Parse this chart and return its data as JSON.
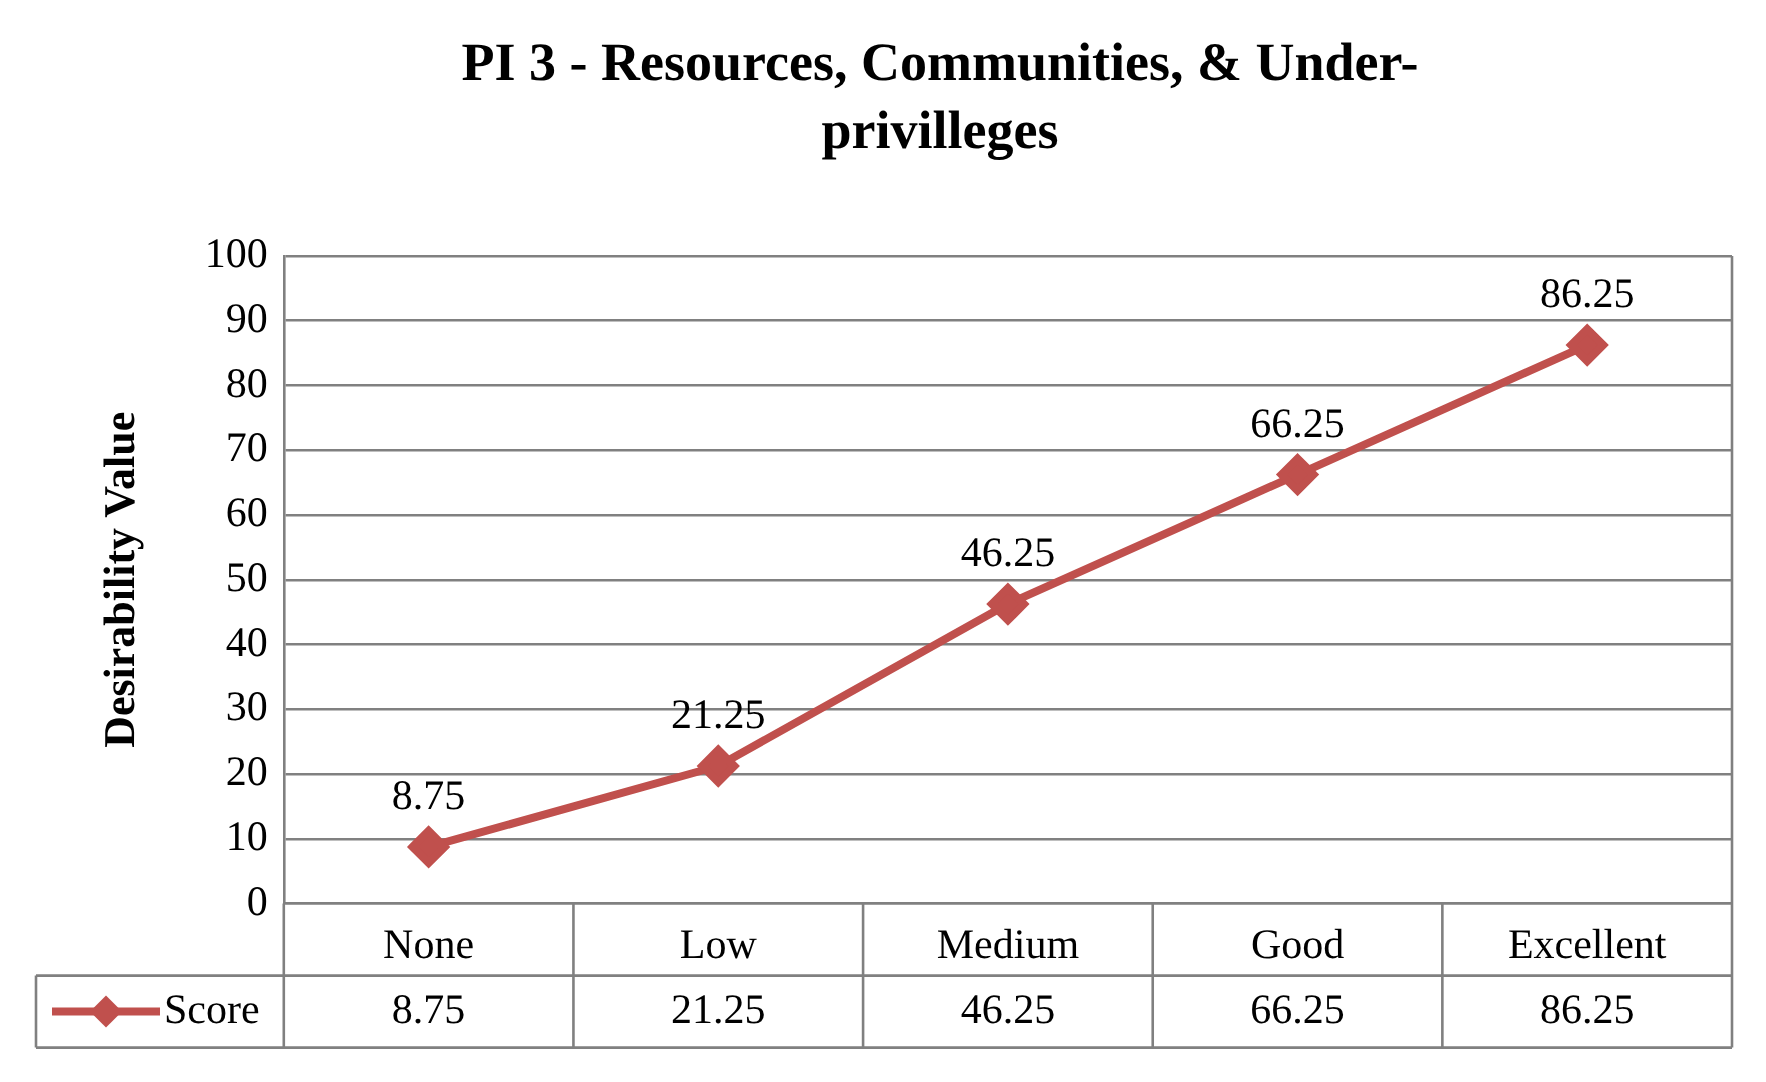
{
  "chart_data": {
    "type": "line",
    "title": "PI 3 - Resources, Communities, & Under-privilleges",
    "ylabel": "Desirability Value",
    "categories": [
      "None",
      "Low",
      "Medium",
      "Good",
      "Excellent"
    ],
    "series": [
      {
        "name": "Score",
        "color": "#c0504d",
        "values": [
          8.75,
          21.25,
          46.25,
          66.25,
          86.25
        ]
      }
    ],
    "annotations": [
      "8.75",
      "21.25",
      "46.25",
      "66.25",
      "86.25"
    ],
    "ylim": [
      0,
      100
    ],
    "yticks": [
      0,
      10,
      20,
      30,
      40,
      50,
      60,
      70,
      80,
      90,
      100
    ],
    "grid": "y",
    "legend": "bottom",
    "marker": "diamond",
    "line_style": "solid",
    "data_labels": true
  }
}
